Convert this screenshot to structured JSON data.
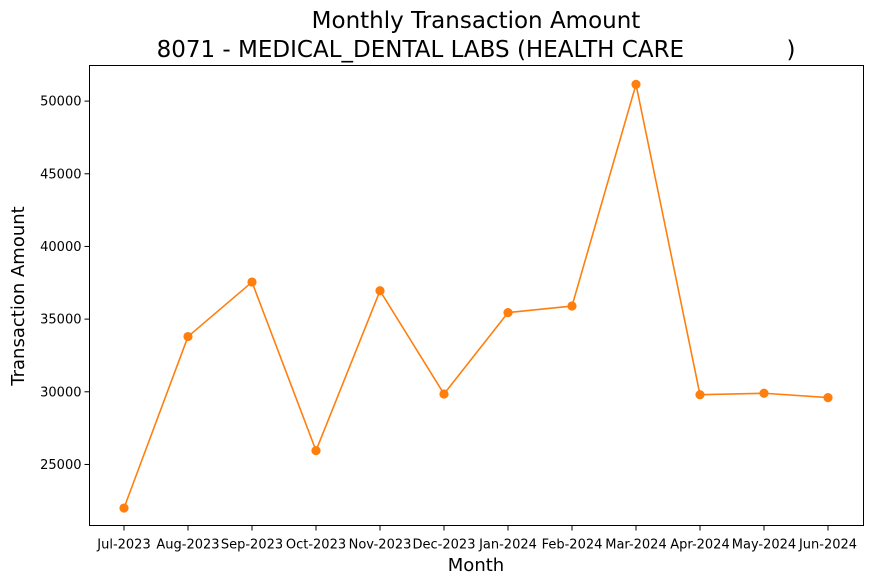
{
  "chart_data": {
    "type": "line",
    "title": "Monthly Transaction Amount",
    "subtitle": "8071 - MEDICAL_DENTAL LABS (HEALTH CARE              )",
    "xlabel": "Month",
    "ylabel": "Transaction Amount",
    "categories": [
      "Jul-2023",
      "Aug-2023",
      "Sep-2023",
      "Oct-2023",
      "Nov-2023",
      "Dec-2023",
      "Jan-2024",
      "Feb-2024",
      "Mar-2024",
      "Apr-2024",
      "May-2024",
      "Jun-2024"
    ],
    "values": [
      22000,
      33800,
      37550,
      25950,
      36950,
      29850,
      35450,
      35900,
      51150,
      29800,
      29900,
      29600
    ],
    "ylim": [
      20800,
      52450
    ],
    "yticks": [
      25000,
      30000,
      35000,
      40000,
      45000,
      50000
    ],
    "color": "#ff7f0e",
    "grid": false
  }
}
